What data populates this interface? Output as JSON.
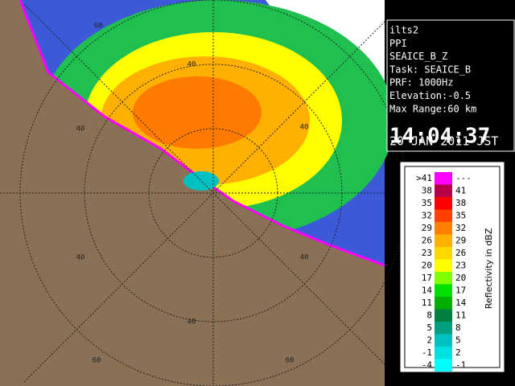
{
  "panel": {
    "lines": [
      "ilts2",
      "PPI",
      "SEAICE_B_Z",
      "Task: SEAICE_B",
      "PRF: 1000Hz",
      "Elevation:-0.5",
      "Max Range:60 km"
    ],
    "time": "14:04:37",
    "date": "20 JAN 2011 JST"
  },
  "legend": {
    "title": "Reflectivity in dBZ",
    "rows": [
      {
        "low": ">41",
        "high": "---",
        "color": "#ff00ff"
      },
      {
        "low": "38",
        "high": "41",
        "color": "#b4004b"
      },
      {
        "low": "35",
        "high": "38",
        "color": "#ff0000"
      },
      {
        "low": "32",
        "high": "35",
        "color": "#ff4000"
      },
      {
        "low": "29",
        "high": "32",
        "color": "#ff8000"
      },
      {
        "low": "26",
        "high": "29",
        "color": "#ffb000"
      },
      {
        "low": "23",
        "high": "26",
        "color": "#ffd800"
      },
      {
        "low": "20",
        "high": "23",
        "color": "#ffff00"
      },
      {
        "low": "17",
        "high": "20",
        "color": "#80ff00"
      },
      {
        "low": "14",
        "high": "17",
        "color": "#00e000"
      },
      {
        "low": "11",
        "high": "14",
        "color": "#00b000"
      },
      {
        "low": "8",
        "high": "11",
        "color": "#008040"
      },
      {
        "low": "5",
        "high": "8",
        "color": "#00a080"
      },
      {
        "low": "2",
        "high": "5",
        "color": "#00c0c0"
      },
      {
        "low": "-1",
        "high": "2",
        "color": "#00e0e0"
      },
      {
        "low": "-4",
        "high": "-1",
        "color": "#00ffff"
      }
    ]
  },
  "ring_labels": [
    "60",
    "40",
    "40",
    "40",
    "40",
    "40",
    "40",
    "60",
    "60"
  ]
}
